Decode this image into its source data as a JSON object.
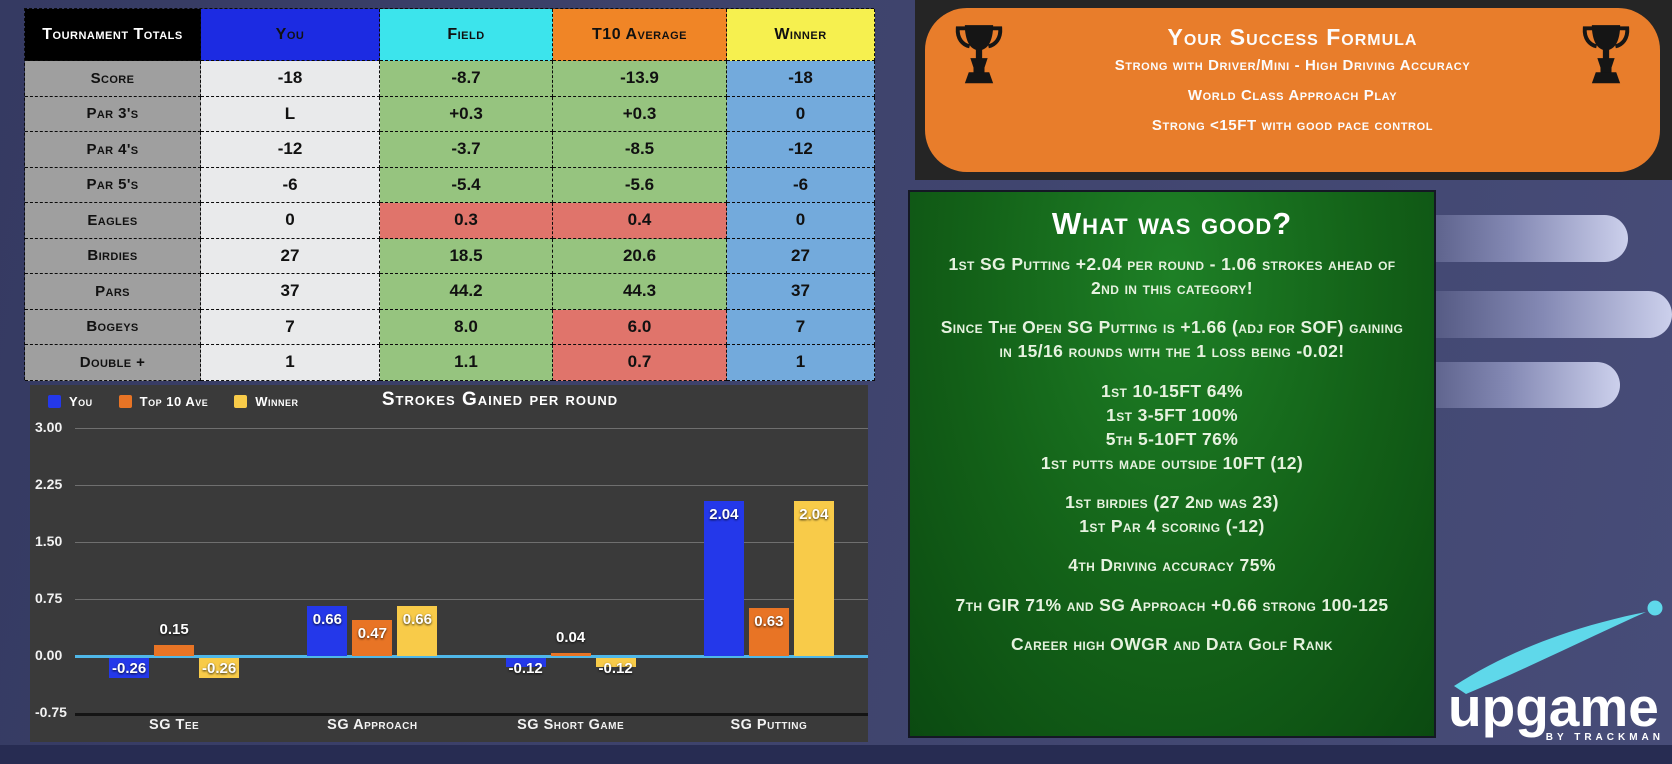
{
  "table": {
    "header": [
      {
        "label": "Tournament Totals",
        "bg": "#000000",
        "fg": "#ffffff"
      },
      {
        "label": "You",
        "bg": "#1c2be2",
        "fg": "#111111"
      },
      {
        "label": "Field",
        "bg": "#3ce4ec",
        "fg": "#111111"
      },
      {
        "label": "T10 Average",
        "bg": "#f08526",
        "fg": "#111111"
      },
      {
        "label": "Winner",
        "bg": "#f6f04f",
        "fg": "#111111"
      }
    ],
    "rows": [
      {
        "label": "Score",
        "cells": [
          {
            "v": "-18",
            "c": "you"
          },
          {
            "v": "-8.7",
            "c": "good"
          },
          {
            "v": "-13.9",
            "c": "good"
          },
          {
            "v": "-18",
            "c": "winner"
          }
        ]
      },
      {
        "label": "Par 3's",
        "cells": [
          {
            "v": "L",
            "c": "you"
          },
          {
            "v": "+0.3",
            "c": "good"
          },
          {
            "v": "+0.3",
            "c": "good"
          },
          {
            "v": "0",
            "c": "winner"
          }
        ]
      },
      {
        "label": "Par 4's",
        "cells": [
          {
            "v": "-12",
            "c": "you"
          },
          {
            "v": "-3.7",
            "c": "good"
          },
          {
            "v": "-8.5",
            "c": "good"
          },
          {
            "v": "-12",
            "c": "winner"
          }
        ]
      },
      {
        "label": "Par 5's",
        "cells": [
          {
            "v": "-6",
            "c": "you"
          },
          {
            "v": "-5.4",
            "c": "good"
          },
          {
            "v": "-5.6",
            "c": "good"
          },
          {
            "v": "-6",
            "c": "winner"
          }
        ]
      },
      {
        "label": "Eagles",
        "cells": [
          {
            "v": "0",
            "c": "you"
          },
          {
            "v": "0.3",
            "c": "bad"
          },
          {
            "v": "0.4",
            "c": "bad"
          },
          {
            "v": "0",
            "c": "winner"
          }
        ]
      },
      {
        "label": "Birdies",
        "cells": [
          {
            "v": "27",
            "c": "you"
          },
          {
            "v": "18.5",
            "c": "good"
          },
          {
            "v": "20.6",
            "c": "good"
          },
          {
            "v": "27",
            "c": "winner"
          }
        ]
      },
      {
        "label": "Pars",
        "cells": [
          {
            "v": "37",
            "c": "you"
          },
          {
            "v": "44.2",
            "c": "good"
          },
          {
            "v": "44.3",
            "c": "good"
          },
          {
            "v": "37",
            "c": "winner"
          }
        ]
      },
      {
        "label": "Bogeys",
        "cells": [
          {
            "v": "7",
            "c": "you"
          },
          {
            "v": "8.0",
            "c": "good"
          },
          {
            "v": "6.0",
            "c": "bad"
          },
          {
            "v": "7",
            "c": "winner"
          }
        ]
      },
      {
        "label": "Double +",
        "cells": [
          {
            "v": "1",
            "c": "you"
          },
          {
            "v": "1.1",
            "c": "good"
          },
          {
            "v": "0.7",
            "c": "bad"
          },
          {
            "v": "1",
            "c": "winner"
          }
        ]
      }
    ],
    "status_colors": {
      "you": "#e9eaeb",
      "good": "#96c47f",
      "bad": "#e0746b",
      "winner": "#73aadc"
    }
  },
  "chart_data": {
    "type": "bar",
    "title": "Strokes Gained per round",
    "categories": [
      "SG Tee",
      "SG Approach",
      "SG Short Game",
      "SG Putting"
    ],
    "series": [
      {
        "name": "You",
        "color": "#2438ea",
        "values": [
          -0.26,
          0.66,
          -0.12,
          2.04
        ]
      },
      {
        "name": "Top 10 Ave",
        "color": "#e87425",
        "values": [
          0.15,
          0.47,
          0.04,
          0.63
        ]
      },
      {
        "name": "Winner",
        "color": "#f8cb49",
        "values": [
          -0.26,
          0.66,
          -0.12,
          2.04
        ]
      }
    ],
    "tick_labels": [
      "3.00",
      "2.25",
      "1.50",
      "0.75",
      "0.00",
      "-0.75"
    ],
    "y_ticks": [
      3.0,
      2.25,
      1.5,
      0.75,
      0.0,
      -0.75
    ],
    "ylim": [
      -0.75,
      3.0
    ],
    "grid": true,
    "legend_position": "top-left",
    "zero_line_color": "#4fb7e8",
    "background": "#3a3a3a"
  },
  "formula_panel": {
    "title": "Your Success Formula",
    "lines": [
      "Strong with Driver/Mini - High Driving Accuracy",
      "World Class Approach Play",
      "Strong <15FT with good pace control"
    ],
    "bg": "#e87d2b",
    "icon": "trophy-icon"
  },
  "good_panel": {
    "title": "What was good?",
    "paragraphs": [
      [
        "1st SG Putting +2.04 per round - 1.06 strokes ahead of 2nd in this category!"
      ],
      [
        "Since The Open SG Putting is +1.66 (adj for SOF) gaining in 15/16 rounds with the 1 loss being -0.02!"
      ],
      [
        "1st 10-15FT 64%",
        "1st 3-5FT 100%",
        "5th 5-10FT 76%",
        "1st putts made outside 10FT (12)"
      ],
      [
        "1st birdies (27 2nd was 23)",
        "1st Par 4 scoring (-12)"
      ],
      [
        "4th Driving accuracy 75%"
      ],
      [
        "7th GIR 71% and SG Approach +0.66 strong 100-125"
      ],
      [
        "Career high OWGR and Data Golf Rank"
      ]
    ],
    "bg": "#136118"
  },
  "logo": {
    "name": "upgame",
    "sub": "BY TRACKMAN",
    "swoosh_color": "#5fd8ea"
  }
}
